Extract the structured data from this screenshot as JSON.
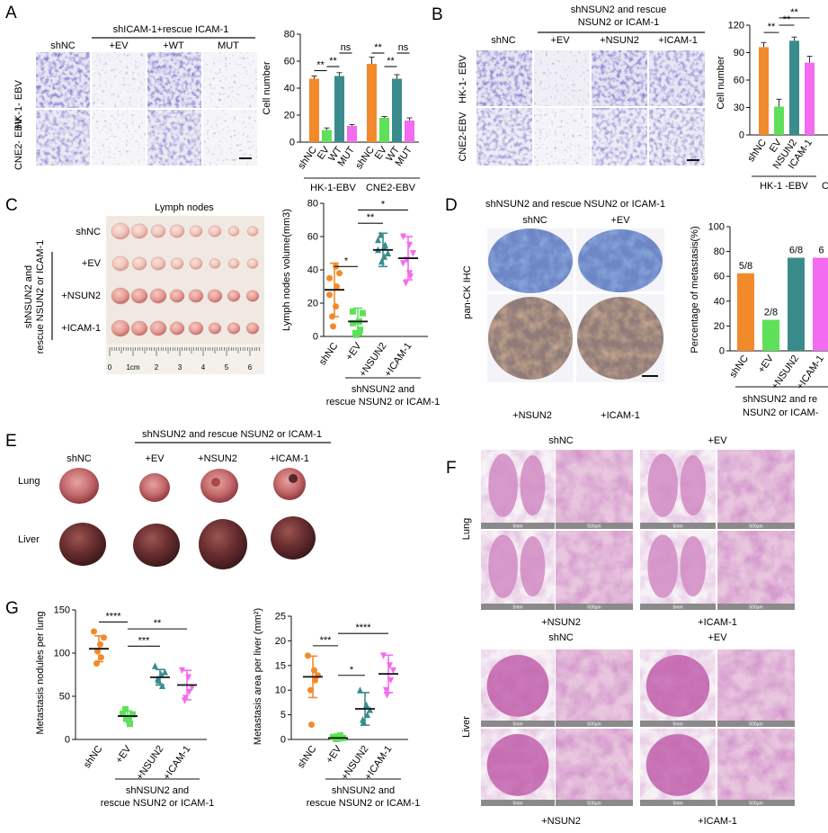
{
  "colors": {
    "orange": "#F28A2B",
    "green": "#5FE05A",
    "teal": "#3A8C8C",
    "magenta": "#F36BEF",
    "stain_blue": "#3E3AA8",
    "he_pink": "#C35FA8",
    "ihc_blue": "#5270B5",
    "ihc_brown": "#A07048"
  },
  "panels": {
    "A": {
      "label": "A",
      "header": "shICAM-1+rescue ICAM-1",
      "columns": [
        "shNC",
        "+EV",
        "+WT",
        "MUT"
      ],
      "rows": [
        "HK-1- EBV",
        "CNE2- EBV"
      ]
    },
    "B": {
      "label": "B",
      "header_line1": "shNSUN2 and rescue",
      "header_line2": "NSUN2 or ICAM-1",
      "columns": [
        "shNC",
        "+EV",
        "+NSUN2",
        "+ICAM-1"
      ],
      "rows": [
        "HK-1- EBV",
        "CNE2-EBV"
      ]
    },
    "C": {
      "label": "C",
      "title": "Lymph nodes",
      "rows": [
        "shNC",
        "+EV",
        "+NSUN2",
        "+ICAM-1"
      ],
      "vertical_label_1": "shNSUN2 and",
      "vertical_label_2": "rescue NSUN2 or ICAM-1",
      "ruler_marks": [
        "0",
        "1cm",
        "2",
        "3",
        "4",
        "5",
        "6"
      ]
    },
    "D": {
      "label": "D",
      "header": "shNSUN2 and rescue NSUN2 or ICAM-1",
      "top_labels": [
        "shNC",
        "+EV"
      ],
      "bottom_labels": [
        "+NSUN2",
        "+ICAM-1"
      ],
      "side_label": "pan-CK IHC"
    },
    "E": {
      "label": "E",
      "header": "shNSUN2 and rescue NSUN2 or ICAM-1",
      "columns": [
        "shNC",
        "+EV",
        "+NSUN2",
        "+ICAM-1"
      ],
      "rows": [
        "Lung",
        "Liver"
      ]
    },
    "F": {
      "label": "F",
      "lung_top": [
        "shNC",
        "+EV"
      ],
      "lung_bottom": [
        "+NSUN2",
        "+ICAM-1"
      ],
      "liver_top": [
        "shNC",
        "+EV"
      ],
      "liver_bottom": [
        "+NSUN2",
        "+ICAM-1"
      ],
      "side_lung": "Lung",
      "side_liver": "Liver",
      "scale_5mm": "5mm",
      "scale_500um": "500μm"
    },
    "G": {
      "label": "G"
    }
  },
  "chart_data": [
    {
      "id": "A",
      "type": "bar",
      "ylabel": "Cell number",
      "ylim": [
        0,
        80
      ],
      "yticks": [
        0,
        20,
        40,
        60,
        80
      ],
      "groups": [
        {
          "name": "HK-1-EBV",
          "categories": [
            "shNC",
            "EV",
            "WT",
            "MUT"
          ],
          "values": [
            47,
            9,
            49,
            12
          ],
          "errors": [
            2,
            1.5,
            2.5,
            1
          ]
        },
        {
          "name": "CNE2-EBV",
          "categories": [
            "shNC",
            "EV",
            "WT",
            "MUT"
          ],
          "values": [
            58,
            18,
            47,
            16
          ],
          "errors": [
            5,
            1,
            3,
            2
          ]
        }
      ],
      "significance": [
        {
          "group": 0,
          "from": 0,
          "to": 1,
          "text": "**",
          "y": 53
        },
        {
          "group": 0,
          "from": 1,
          "to": 2,
          "text": "**",
          "y": 56
        },
        {
          "group": 0,
          "from": 2,
          "to": 3,
          "text": "ns",
          "y": 66
        },
        {
          "group": 1,
          "from": 0,
          "to": 1,
          "text": "**",
          "y": 66
        },
        {
          "group": 1,
          "from": 1,
          "to": 2,
          "text": "**",
          "y": 56
        },
        {
          "group": 1,
          "from": 2,
          "to": 3,
          "text": "ns",
          "y": 66
        }
      ]
    },
    {
      "id": "B",
      "type": "bar",
      "ylabel": "Cell number",
      "ylim": [
        0,
        120
      ],
      "yticks": [
        0,
        30,
        60,
        90,
        120
      ],
      "group_label": "HK-1 -EBV",
      "group_label_2": "C",
      "categories": [
        "shNC",
        "EV",
        "NSUN2",
        "ICAM-1"
      ],
      "values": [
        96,
        31,
        103,
        79
      ],
      "errors": [
        5,
        8,
        4,
        7
      ],
      "significance": [
        {
          "from": 0,
          "to": 1,
          "text": "**",
          "y": 112
        },
        {
          "from": 1,
          "to": 2,
          "text": "**",
          "y": 120
        },
        {
          "from": 1,
          "to": 3,
          "text": "**",
          "y": 128
        }
      ]
    },
    {
      "id": "C",
      "type": "scatter",
      "ylabel": "Lymph nodes volume(mm3)",
      "ylim": [
        0,
        80
      ],
      "yticks": [
        0,
        20,
        40,
        60,
        80
      ],
      "categories": [
        "shNC",
        "+EV",
        "+NSUN2",
        "+ICAM-1"
      ],
      "xgroup_label_1": "shNSUN2 and",
      "xgroup_label_2": "rescue NSUN2 or ICAM-1",
      "means": [
        28,
        9,
        52,
        47
      ],
      "sds": [
        16,
        8,
        10,
        13
      ],
      "points": [
        [
          35,
          42,
          30,
          12,
          6,
          38,
          25,
          18
        ],
        [
          15,
          9,
          4,
          2,
          1,
          14,
          8,
          2
        ],
        [
          52,
          48,
          55,
          61,
          45,
          50,
          58,
          54
        ],
        [
          60,
          55,
          36,
          32,
          46,
          50,
          44,
          38
        ]
      ],
      "markers": [
        "circle",
        "square",
        "triangle",
        "triangle-down"
      ],
      "significance": [
        {
          "from": 0,
          "to": 1,
          "text": "*",
          "y": 42
        },
        {
          "from": 1,
          "to": 2,
          "text": "**",
          "y": 68
        },
        {
          "from": 1,
          "to": 3,
          "text": "*",
          "y": 76
        }
      ]
    },
    {
      "id": "D",
      "type": "bar",
      "ylabel": "Percentage of metastasis(%)",
      "ylim": [
        0,
        100
      ],
      "yticks": [
        0,
        20,
        40,
        60,
        80,
        100
      ],
      "categories": [
        "shNC",
        "+EV",
        "+NSUN2",
        "+ICAM-1"
      ],
      "values": [
        62.5,
        25,
        75,
        75
      ],
      "data_labels": [
        "5/8",
        "2/8",
        "6/8",
        "6"
      ],
      "xgroup_label_1": "shNSUN2 and re",
      "xgroup_label_2": "NSUN2 or ICAM-"
    },
    {
      "id": "G1",
      "type": "scatter",
      "ylabel": "Metastasis nodules per lung",
      "ylim": [
        0,
        150
      ],
      "yticks": [
        0,
        50,
        100,
        150
      ],
      "categories": [
        "shNC",
        "+EV",
        "+NSUN2",
        "+ICAM-1"
      ],
      "xgroup_label_1": "shNSUN2 and",
      "xgroup_label_2": "rescue NSUN2 or ICAM-1",
      "means": [
        105,
        27,
        72,
        63
      ],
      "sds": [
        15,
        6,
        9,
        17
      ],
      "points": [
        [
          125,
          110,
          95,
          88,
          102,
          118
        ],
        [
          30,
          22,
          18,
          35,
          25,
          29
        ],
        [
          85,
          75,
          62,
          70,
          68,
          78
        ],
        [
          80,
          72,
          55,
          45,
          48,
          60
        ]
      ],
      "markers": [
        "circle",
        "square",
        "triangle",
        "triangle-down"
      ],
      "significance": [
        {
          "from": 0,
          "to": 1,
          "text": "****",
          "y": 136
        },
        {
          "from": 1,
          "to": 2,
          "text": "***",
          "y": 108
        },
        {
          "from": 1,
          "to": 3,
          "text": "**",
          "y": 128
        }
      ]
    },
    {
      "id": "G2",
      "type": "scatter",
      "ylabel": "Metastasis area per liver (mm²)",
      "ylim": [
        0,
        25
      ],
      "yticks": [
        0,
        5,
        10,
        15,
        20,
        25
      ],
      "categories": [
        "shNC",
        "+EV",
        "+NSUN2",
        "+ICAM-1"
      ],
      "xgroup_label_1": "shNSUN2 and",
      "xgroup_label_2": "rescue NSUN2 or ICAM-1",
      "means": [
        12.7,
        0.3,
        6.2,
        13.3
      ],
      "sds": [
        4.2,
        0.5,
        3.3,
        3.8
      ],
      "points": [
        [
          17,
          14,
          12,
          10,
          3,
          13
        ],
        [
          0.5,
          0.2,
          0.8,
          0.1,
          0.6,
          0.3
        ],
        [
          10,
          7,
          5,
          4,
          3.5,
          6
        ],
        [
          17,
          15,
          12,
          10,
          9,
          14
        ]
      ],
      "markers": [
        "circle",
        "square",
        "triangle",
        "triangle-down"
      ],
      "significance": [
        {
          "from": 0,
          "to": 1,
          "text": "***",
          "y": 19
        },
        {
          "from": 1,
          "to": 2,
          "text": "*",
          "y": 13
        },
        {
          "from": 1,
          "to": 3,
          "text": "****",
          "y": 21.5
        }
      ]
    }
  ]
}
